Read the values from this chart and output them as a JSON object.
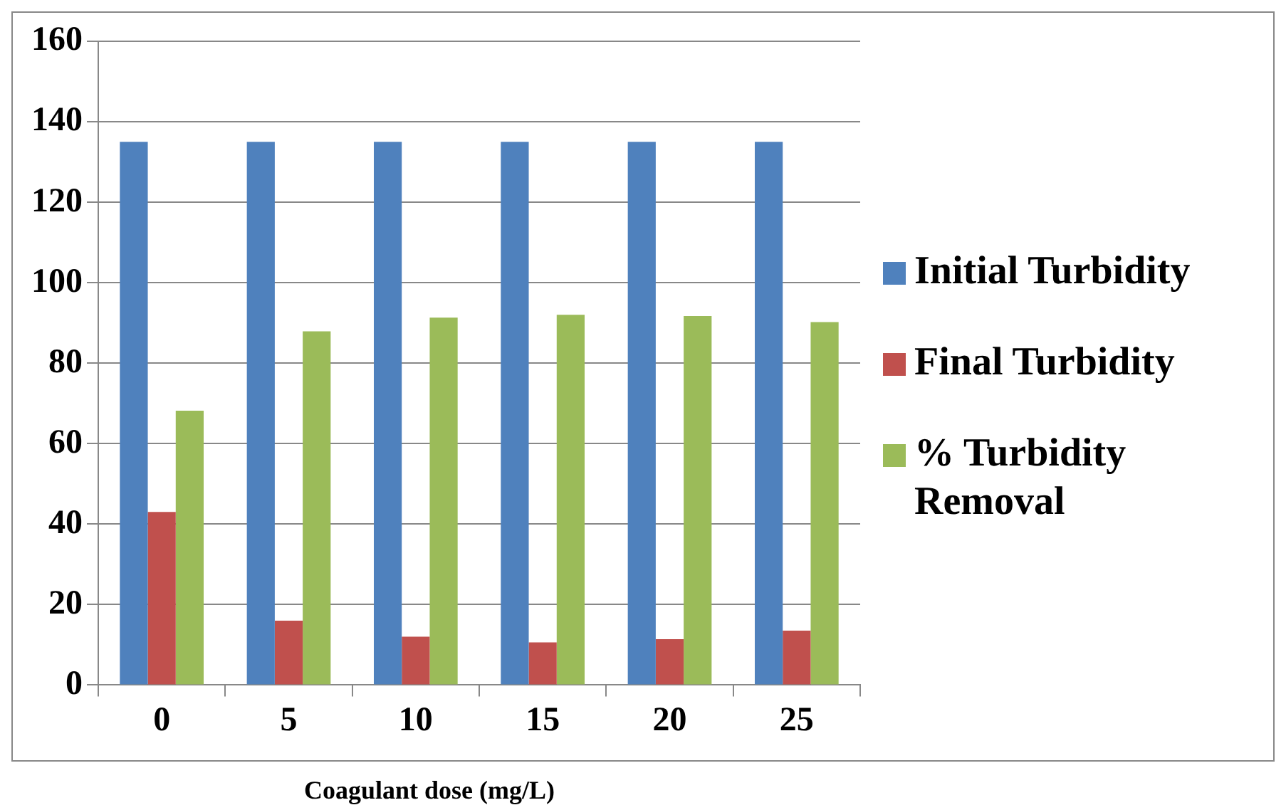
{
  "chart_data": {
    "type": "bar",
    "xlabel": "Coagulant dose (mg/L)",
    "categories": [
      "0",
      "5",
      "10",
      "15",
      "20",
      "25"
    ],
    "series": [
      {
        "name": "Initial Turbidity",
        "color": "#4f81bd",
        "values": [
          135,
          135,
          135,
          135,
          135,
          135
        ]
      },
      {
        "name": "Final Turbidity",
        "color": "#c0504d",
        "values": [
          43,
          16,
          12,
          10.6,
          11.4,
          13.5
        ]
      },
      {
        "name": "% Turbidity Removal",
        "color": "#9bbb59",
        "values": [
          68.2,
          87.9,
          91.3,
          92,
          91.7,
          90.2
        ]
      }
    ],
    "ylim": [
      0,
      160
    ],
    "yticks": [
      0,
      20,
      40,
      60,
      80,
      100,
      120,
      140,
      160
    ],
    "grid": "y",
    "legend": "right"
  }
}
